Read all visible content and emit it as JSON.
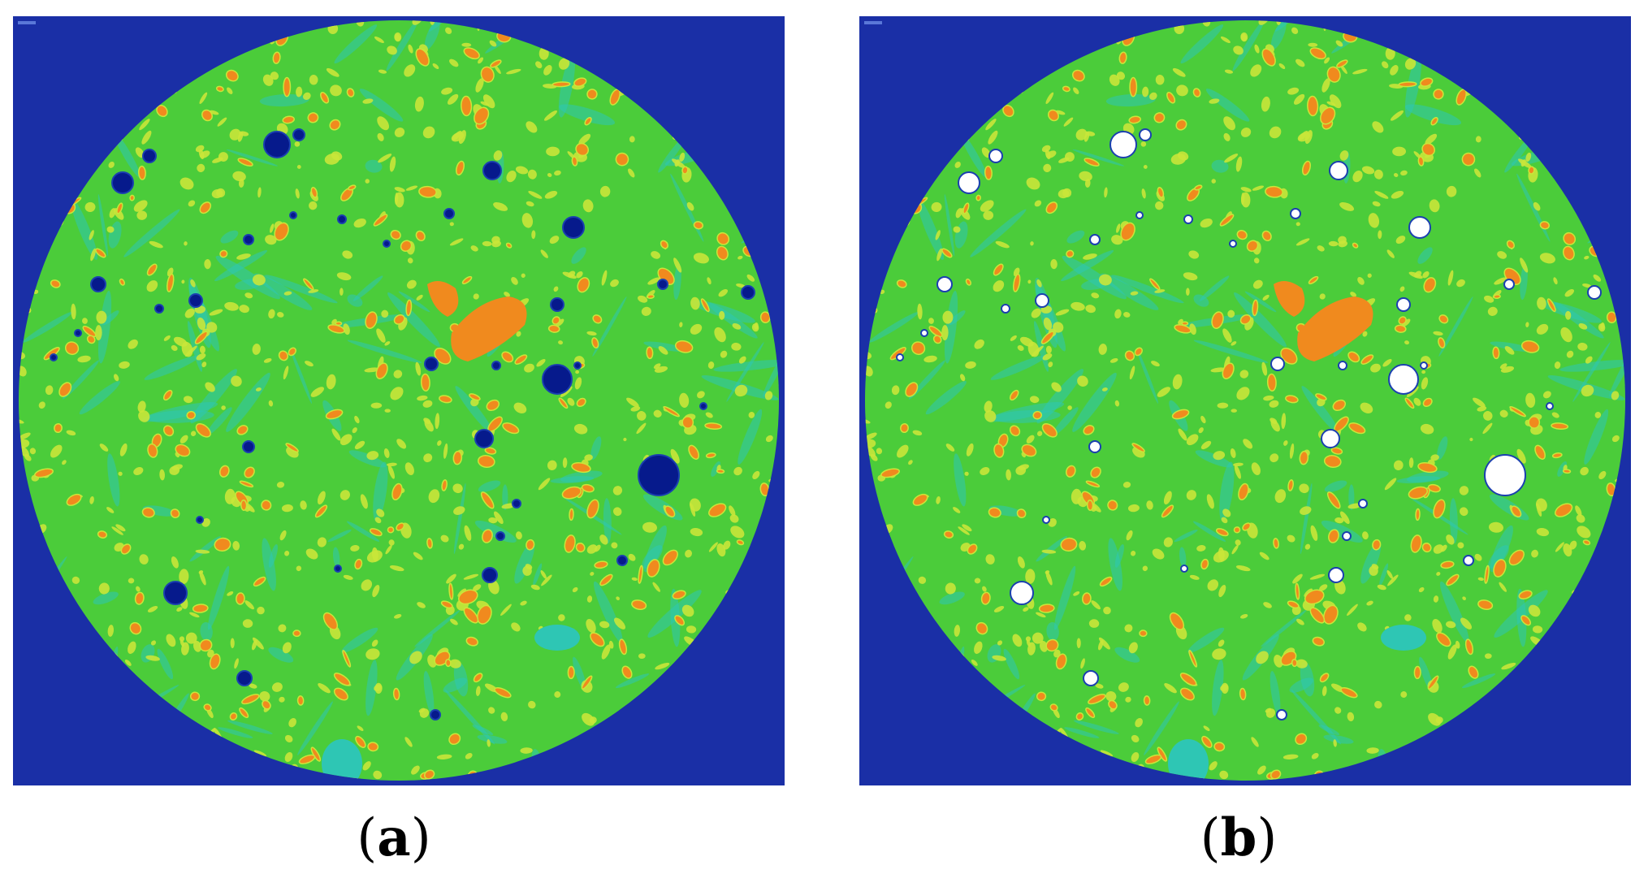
{
  "panels": [
    {
      "id": "a",
      "label": "a",
      "pore_style": "dark-blue"
    },
    {
      "id": "b",
      "label": "b",
      "pore_style": "white"
    }
  ],
  "colors": {
    "background": "#1a2fa6",
    "matrix_green": "#4bcc3a",
    "cyan_streak": "#2ec6b4",
    "yellow_particle": "#c9e63a",
    "orange_particle": "#f08a1e",
    "pore_dark": "#061a8c",
    "pore_white": "#ffffff"
  }
}
